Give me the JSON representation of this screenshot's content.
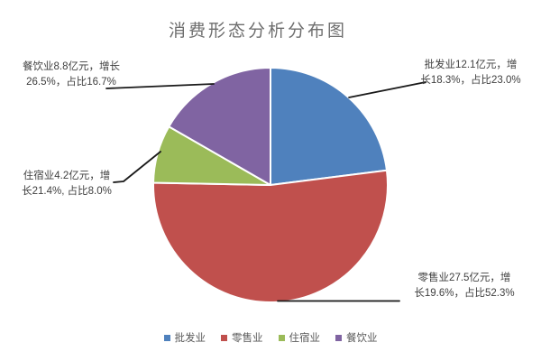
{
  "page": {
    "background": "#ffffff"
  },
  "chart": {
    "title": "消费形态分析分布图",
    "title_color": "#6e6e6e"
  },
  "chart_data": {
    "type": "pie",
    "title": "消费形态分析分布图",
    "unit": "亿元",
    "categories": [
      "批发业",
      "零售业",
      "住宿业",
      "餐饮业"
    ],
    "values": [
      12.1,
      27.5,
      4.2,
      8.8
    ],
    "share_pct": [
      23.0,
      52.3,
      8.0,
      16.7
    ],
    "growth_pct": [
      18.3,
      19.6,
      21.4,
      26.5
    ],
    "colors": [
      "#4F81BD",
      "#C0504D",
      "#9BBB59",
      "#8064A2"
    ],
    "start_angle_deg": -90,
    "direction": "clockwise",
    "legend_position": "bottom",
    "data_labels": true
  },
  "labels": {
    "wholesale": {
      "line1": "批发业12.1亿元，增",
      "line2": "长18.3%，占比23.0%"
    },
    "retail": {
      "line1": "零售业27.5亿元，增",
      "line2": "长19.6%，占比52.3%"
    },
    "accommodation": {
      "line1": "住宿业4.2亿元，增",
      "line2": "长21.4%, 占比8.0%"
    },
    "catering": {
      "line1": "餐饮业8.8亿元，增长",
      "line2": "26.5%，占比16.7%"
    }
  },
  "legend": {
    "items": [
      {
        "label": "批发业",
        "color": "#4F81BD"
      },
      {
        "label": "零售业",
        "color": "#C0504D"
      },
      {
        "label": "住宿业",
        "color": "#9BBB59"
      },
      {
        "label": "餐饮业",
        "color": "#8064A2"
      }
    ]
  }
}
